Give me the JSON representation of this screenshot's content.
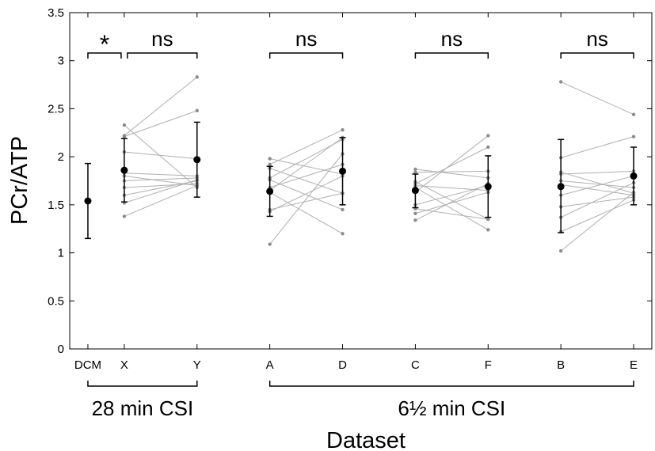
{
  "chart_data": {
    "type": "scatter",
    "xlabel": "Dataset",
    "ylabel": "PCr/ATP",
    "ylim": [
      0,
      3.5
    ],
    "yticks": [
      0,
      0.5,
      1,
      1.5,
      2,
      2.5,
      3,
      3.5
    ],
    "ytick_labels": [
      "0",
      "0.5",
      "1",
      "1.5",
      "2",
      "2.5",
      "3",
      "3.5"
    ],
    "categories": [
      "DCM",
      "X",
      "Y",
      "A",
      "D",
      "C",
      "F",
      "B",
      "E"
    ],
    "category_positions": [
      1,
      2,
      4,
      6,
      8,
      10,
      12,
      14,
      16
    ],
    "xlim": [
      0.5,
      16.5
    ],
    "grid": false,
    "summary": [
      {
        "category": "DCM",
        "mean": 1.54,
        "low": 1.15,
        "high": 1.93
      },
      {
        "category": "X",
        "mean": 1.86,
        "low": 1.53,
        "high": 2.19
      },
      {
        "category": "Y",
        "mean": 1.97,
        "low": 1.58,
        "high": 2.36
      },
      {
        "category": "A",
        "mean": 1.64,
        "low": 1.38,
        "high": 1.9
      },
      {
        "category": "D",
        "mean": 1.85,
        "low": 1.5,
        "high": 2.2
      },
      {
        "category": "C",
        "mean": 1.65,
        "low": 1.47,
        "high": 1.82
      },
      {
        "category": "F",
        "mean": 1.69,
        "low": 1.37,
        "high": 2.01
      },
      {
        "category": "B",
        "mean": 1.69,
        "low": 1.21,
        "high": 2.18
      },
      {
        "category": "E",
        "mean": 1.8,
        "low": 1.5,
        "high": 2.1
      }
    ],
    "paired": [
      {
        "from": "X",
        "to": "Y",
        "pairs": [
          [
            2.33,
            1.68
          ],
          [
            2.22,
            2.83
          ],
          [
            2.21,
            2.48
          ],
          [
            2.05,
            1.98
          ],
          [
            1.83,
            1.8
          ],
          [
            1.8,
            1.7
          ],
          [
            1.75,
            1.78
          ],
          [
            1.68,
            1.72
          ],
          [
            1.6,
            1.75
          ],
          [
            1.52,
            1.76
          ],
          [
            1.38,
            1.7
          ]
        ]
      },
      {
        "from": "A",
        "to": "D",
        "pairs": [
          [
            1.98,
            1.82
          ],
          [
            1.92,
            2.28
          ],
          [
            1.88,
            1.62
          ],
          [
            1.78,
            2.18
          ],
          [
            1.76,
            1.45
          ],
          [
            1.68,
            1.92
          ],
          [
            1.65,
            2.2
          ],
          [
            1.63,
            1.2
          ],
          [
            1.45,
            1.62
          ],
          [
            1.43,
            1.8
          ],
          [
            1.09,
            2.03
          ]
        ]
      },
      {
        "from": "C",
        "to": "F",
        "pairs": [
          [
            1.87,
            1.78
          ],
          [
            1.84,
            1.85
          ],
          [
            1.74,
            1.35
          ],
          [
            1.72,
            2.1
          ],
          [
            1.7,
            1.65
          ],
          [
            1.68,
            1.24
          ],
          [
            1.63,
            2.22
          ],
          [
            1.5,
            1.7
          ],
          [
            1.46,
            1.35
          ],
          [
            1.41,
            1.63
          ],
          [
            1.34,
            1.72
          ]
        ]
      },
      {
        "from": "B",
        "to": "E",
        "pairs": [
          [
            2.78,
            2.44
          ],
          [
            1.99,
            2.21
          ],
          [
            1.84,
            1.62
          ],
          [
            1.82,
            1.85
          ],
          [
            1.75,
            1.68
          ],
          [
            1.71,
            1.6
          ],
          [
            1.6,
            1.8
          ],
          [
            1.48,
            1.58
          ],
          [
            1.37,
            1.73
          ],
          [
            1.22,
            1.55
          ],
          [
            1.02,
            1.63
          ]
        ]
      }
    ],
    "significance": [
      {
        "label": "*",
        "from": "DCM",
        "to": "X"
      },
      {
        "label": "ns",
        "from": "X",
        "to": "Y"
      },
      {
        "label": "ns",
        "from": "A",
        "to": "D"
      },
      {
        "label": "ns",
        "from": "C",
        "to": "F"
      },
      {
        "label": "ns",
        "from": "B",
        "to": "E"
      }
    ],
    "groups": [
      {
        "label": "28 min CSI",
        "from": "DCM",
        "to": "Y"
      },
      {
        "label": "6½ min CSI",
        "from": "A",
        "to": "E"
      }
    ],
    "colors": {
      "summary": "#000000",
      "individual": "#8c8c8c",
      "axis": "#000000"
    }
  }
}
